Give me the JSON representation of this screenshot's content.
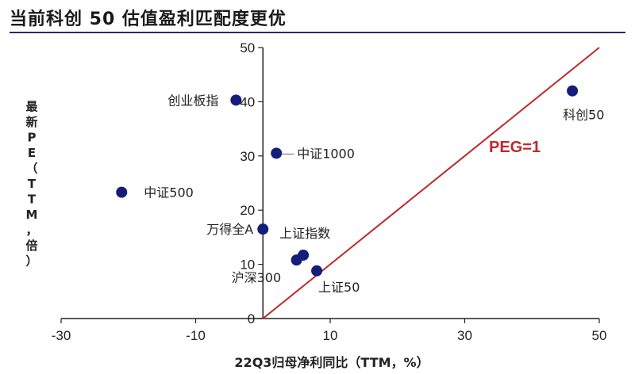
{
  "title": "当前科创 50 估值盈利匹配度更优",
  "chart_data": {
    "type": "scatter",
    "xlabel": "22Q3归母净利同比（TTM，%）",
    "ylabel": "最新PE（TTM，倍）",
    "xlim": [
      -30,
      50
    ],
    "ylim": [
      0,
      50
    ],
    "xticks": [
      "-30",
      "-10",
      "10",
      "30",
      "50"
    ],
    "yticks": [
      "0",
      "10",
      "20",
      "30",
      "40",
      "50"
    ],
    "grid": false,
    "points": [
      {
        "label": "科创50",
        "x": 46,
        "y": 42
      },
      {
        "label": "创业板指",
        "x": -4,
        "y": 40.3
      },
      {
        "label": "中证1000",
        "x": 2,
        "y": 30.5
      },
      {
        "label": "中证500",
        "x": -21,
        "y": 23.3
      },
      {
        "label": "万得全A",
        "x": 0,
        "y": 16.5
      },
      {
        "label": "上证指数",
        "x": 6,
        "y": 11.7
      },
      {
        "label": "沪深300",
        "x": 5,
        "y": 10.8
      },
      {
        "label": "上证50",
        "x": 8,
        "y": 8.8
      }
    ],
    "reference_line": {
      "label": "PEG=1",
      "x": [
        0,
        50
      ],
      "y": [
        0,
        50
      ],
      "color": "#c0282a"
    },
    "point_color": "#151d7a"
  }
}
